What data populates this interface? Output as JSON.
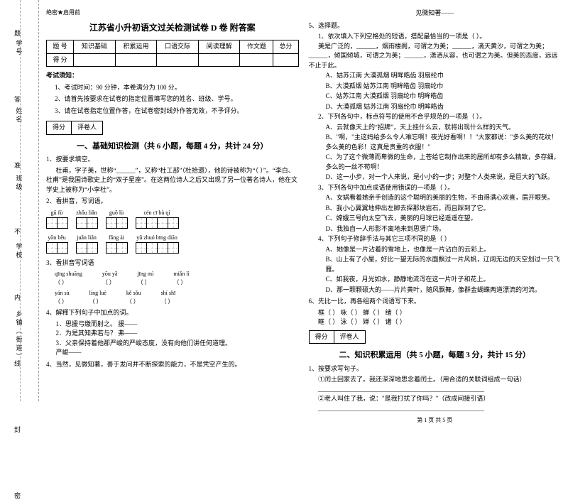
{
  "margin": {
    "labels": [
      "学号",
      "姓名",
      "班级",
      "学校",
      "乡镇（街道）"
    ],
    "binding_chars": [
      "题",
      "答",
      "准",
      "不",
      "内",
      "线",
      "封",
      "密"
    ]
  },
  "header_tag": "绝密★启用前",
  "title": "江苏省小升初语文过关检测试卷 D 卷  附答案",
  "score_table": {
    "row1": [
      "题  号",
      "知识基础",
      "积累运用",
      "口语交际",
      "阅读理解",
      "作文题",
      "总分"
    ],
    "row2": [
      "得  分",
      "",
      "",
      "",
      "",
      "",
      ""
    ]
  },
  "notice_head": "考试须知：",
  "notices": [
    "1、考试时间：90 分钟，本卷满分为 100 分。",
    "2、请首先按要求在试卷的指定位置填写您的姓名、班级、学号。",
    "3、请在试卷指定位置作答，在试卷密封线外作答无效，不予评分。"
  ],
  "scorebox": {
    "a": "得分",
    "b": "评卷人"
  },
  "section1": "一、基础知识检测（共 6 小题，每题 4 分，共计 24 分）",
  "q1": {
    "stem": "1、按要求填空。",
    "line1": "杜甫，字子美，世称“______”，又称“杜工部”（杜拾遗），他的诗被称为“（     ）”。“李白、杜甫”是我国诗歌史上的“双子星座”。在这两位诗人之后又出现了另一位著名诗人，他在文学史上被称为“小李杜”。"
  },
  "q2": {
    "stem": "2、看拼音，写词语。",
    "grid1": [
      {
        "pinyin": "gū  fù",
        "cells": 2
      },
      {
        "pinyin": "zhǒu liǎn",
        "cells": 2
      },
      {
        "pinyin": "guǒ  lù",
        "cells": 2
      },
      {
        "pinyin": "cén  cī  bù  qí",
        "cells": 4
      }
    ],
    "grid2": [
      {
        "pinyin": "yōn  hěu",
        "cells": 2
      },
      {
        "pinyin": "juǎn liǎn",
        "cells": 2
      },
      {
        "pinyin": "fǎng  ài",
        "cells": 2
      },
      {
        "pinyin": "yǔ  zhuó bīng diāo",
        "cells": 4
      }
    ]
  },
  "q3": {
    "stem": "3、看拼音写词语",
    "items": [
      {
        "top": "qīng shuāng",
        "bot": "（          ）"
      },
      {
        "top": "yōu yǎ",
        "bot": "（          ）"
      },
      {
        "top": "jīng mì",
        "bot": "（          ）"
      },
      {
        "top": "miǎn lì",
        "bot": "（          ）"
      }
    ],
    "items2": [
      {
        "top": "yán sù",
        "bot": "（          ）"
      },
      {
        "top": "líng luè",
        "bot": "（          ）"
      },
      {
        "top": "kě sǒu",
        "bot": "（          ）"
      },
      {
        "top": "shí shī",
        "bot": "（          ）"
      }
    ]
  },
  "q4": {
    "stem": "4、解释下列句子中加点的词。",
    "lines": [
      "1．思援弓缴而射之。  援——",
      "2．为是其知弗若与？  弗——",
      "3．父亲保持着他那严峻的严峻态度，没有向他们讲任何道理。",
      "严峻——"
    ]
  },
  "q4b": "4、当然，见微知著，善于发问并不断探索的能力，不是凭空产生的。",
  "right_header": "见微知著——",
  "q5": {
    "stem": "5、选择题。",
    "sub1": {
      "stem": "1、依次填入下列空格处的短语，搭配最恰当的一项是（     ）。",
      "text": "美是广泛的，______，烟雨楼阁，可谓之为美；______，滴天黄沙，可谓之为美；______，倾国倾城，可谓之为美；______，潇洒从容，也可谓之为美。但美的态度，远远不止于此。",
      "opts": [
        "A、姑苏江南     大漠孤烟     明眸皓齿     羽扇纶巾",
        "B、大漠孤烟     姑苏江南     明眸皓齿     羽扇纶巾",
        "C、姑苏江南     大漠孤烟     羽扇纶巾     明眸皓齿",
        "D、大漠孤烟     姑苏江南     羽扇纶巾     明眸皓齿"
      ]
    },
    "sub2": {
      "stem": "2、下列各句中，标点符号的使用不合乎规范的一项是（     ）。",
      "opts": [
        "A、云就像天上的“招牌”，天上挂什么云，就将出现什么样的天气。",
        "B、\"啊，\"主这妈给多么令人难忘啊！夜光好看啊！！\"大家都说：\"多么美的花纹！多么美的色彩！这真是贵重的衣服！\"",
        "C、为了这个微薄而卑微的生命，上苍给它制作出来的居所却有多么精致，多存细，多么的一丝不苟啊！",
        "D、这一小步，对一个人来说，是小小的一步；对整个人类来说，是巨大的飞跃。"
      ]
    },
    "sub3": {
      "stem": "3、下列各句中加点成语使用错误的一项是（     ）。",
      "opts": [
        "A、女娲看着她亲手创造的这个聪明的美丽的生物，不由得满心欢喜，眉开眼笑。",
        "B、我小心翼翼地伸出左脚去探那块岩石，而且踩到了它。",
        "C、嫦娥三号向太空飞去，美丽的月球已经遥遥在望。",
        "D、我独自一人形影不离地来到思贤广场。"
      ]
    },
    "sub4": {
      "stem": "4、下列句子修辞手法与其它三项不同的是（     ）",
      "opts": [
        "A、她像是一片沾着的雪地上，也像是一片沾白的云彩上。",
        "B、山上有了小屋，好比一望无际的水面飘过一片风帆，辽阔无边的天空划过一只飞雁。",
        "C、如我夜，月光如水，静静地流泻在这一片叶子和花上。",
        "D、那一颗颗硕大的——片片黄叶，随风飘舞，像群金蝴蝶两道漂流的河流。"
      ]
    }
  },
  "q6": {
    "stem": "6、先比一比，再各组两个词语写下来。",
    "rows": [
      "框（      ）    咏（      ）    蝉（      ）    绪（      ）",
      "眶（      ）    泳（      ）    婵（      ）    诸（      ）"
    ]
  },
  "section2": "二、知识积累运用（共 5 小题，每题 3 分，共计 15 分）",
  "q2_1": {
    "stem": "1、按要求写句子。",
    "lines": [
      "①闰土回家去了。我还深深地思念着闰土。（用合适的关联词组成一句话）",
      "____________________________________________________",
      "②老人叫住了我，说：\"是我打扰了你吗？\"（改成间接引语）",
      "____________________________________________________"
    ]
  },
  "footer": "第 1 页  共 5 页"
}
